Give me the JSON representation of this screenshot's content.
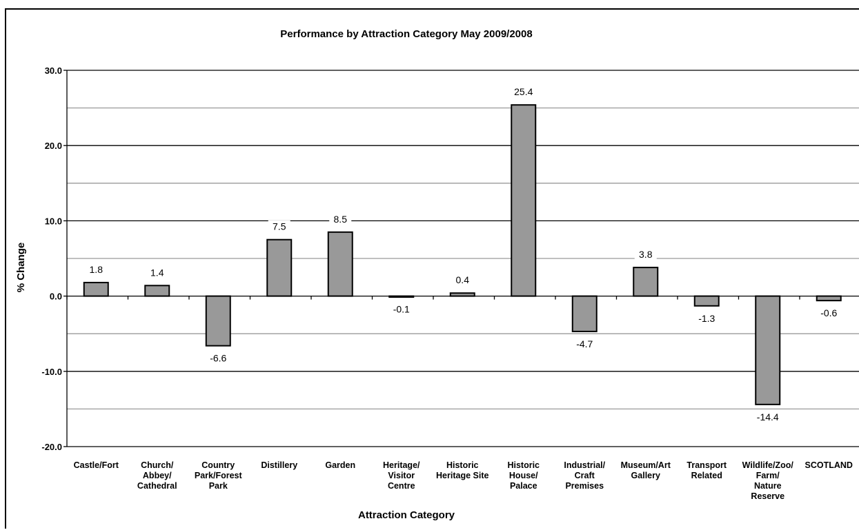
{
  "chart_data": {
    "type": "bar",
    "title": "Performance by Attraction Category May 2009/2008",
    "xlabel": "Attraction Category",
    "ylabel": "% Change",
    "ylim": [
      -20,
      30
    ],
    "y_ticks": [
      "30.0",
      "20.0",
      "10.0",
      "0.0",
      "-10.0",
      "-20.0"
    ],
    "grid": true,
    "categories": [
      "Castle/Fort",
      "Church/ Abbey/ Cathedral",
      "Country Park/Forest Park",
      "Distillery",
      "Garden",
      "Heritage/ Visitor Centre",
      "Historic Heritage Site",
      "Historic House/ Palace",
      "Industrial/ Craft Premises",
      "Museum/Art Gallery",
      "Transport Related",
      "Wildlife/Zoo/ Farm/ Nature Reserve",
      "SCOTLAND"
    ],
    "category_lines": [
      [
        "Castle/Fort"
      ],
      [
        "Church/",
        "Abbey/",
        "Cathedral"
      ],
      [
        "Country",
        "Park/Forest",
        "Park"
      ],
      [
        "Distillery"
      ],
      [
        "Garden"
      ],
      [
        "Heritage/",
        "Visitor",
        "Centre"
      ],
      [
        "Historic",
        "Heritage Site"
      ],
      [
        "Historic",
        "House/",
        "Palace"
      ],
      [
        "Industrial/",
        "Craft",
        "Premises"
      ],
      [
        "Museum/Art",
        "Gallery"
      ],
      [
        "Transport",
        "Related"
      ],
      [
        "Wildlife/Zoo/",
        "Farm/",
        "Nature",
        "Reserve"
      ],
      [
        "SCOTLAND"
      ]
    ],
    "values": [
      1.8,
      1.4,
      -6.6,
      7.5,
      8.5,
      -0.1,
      0.4,
      25.4,
      -4.7,
      3.8,
      -1.3,
      -14.4,
      -0.6
    ],
    "value_labels": [
      "1.8",
      "1.4",
      "-6.6",
      "7.5",
      "8.5",
      "-0.1",
      "0.4",
      "25.4",
      "-4.7",
      "3.8",
      "-1.3",
      "-14.4",
      "-0.6"
    ],
    "bar_color": "#999999",
    "bar_border_color": "#000000"
  }
}
